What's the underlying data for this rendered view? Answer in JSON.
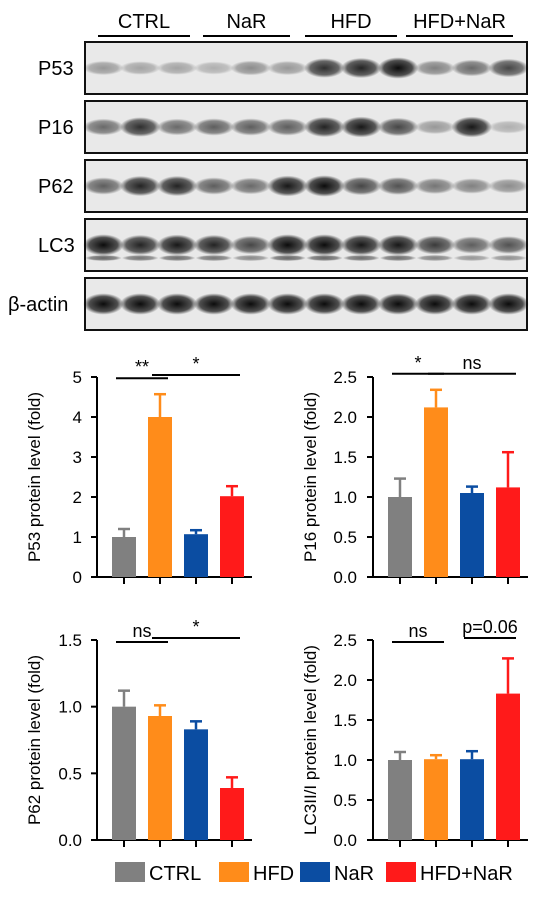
{
  "blot": {
    "groups": [
      "CTRL",
      "NaR",
      "HFD",
      "HFD+NaR"
    ],
    "rows": [
      {
        "label": "P53",
        "intensity": [
          0.35,
          0.3,
          0.3,
          0.25,
          0.4,
          0.35,
          0.8,
          0.85,
          0.95,
          0.45,
          0.55,
          0.7
        ]
      },
      {
        "label": "P16",
        "intensity": [
          0.55,
          0.8,
          0.55,
          0.6,
          0.6,
          0.6,
          0.85,
          0.9,
          0.7,
          0.35,
          0.9,
          0.25
        ]
      },
      {
        "label": "P62",
        "intensity": [
          0.6,
          0.85,
          0.85,
          0.6,
          0.55,
          0.9,
          0.95,
          0.7,
          0.65,
          0.5,
          0.45,
          0.4
        ]
      },
      {
        "label": "LC3",
        "intensity": [
          0.95,
          0.85,
          0.9,
          0.85,
          0.7,
          0.95,
          0.95,
          0.9,
          0.9,
          0.75,
          0.6,
          0.65
        ]
      },
      {
        "label": "β-actin",
        "intensity": [
          0.95,
          0.95,
          0.95,
          0.95,
          0.95,
          0.95,
          0.95,
          0.95,
          0.95,
          0.95,
          0.95,
          0.95
        ]
      }
    ]
  },
  "chart_data": [
    {
      "type": "bar",
      "categories": [
        "CTRL",
        "HFD",
        "NaR",
        "HFD+NaR"
      ],
      "values": [
        1.0,
        4.0,
        1.07,
        2.02
      ],
      "errors": [
        0.2,
        0.57,
        0.1,
        0.25
      ],
      "ylabel": "P53 protein level (fold)",
      "ylim": [
        0,
        5
      ],
      "yticks": [
        "0",
        "1",
        "2",
        "3",
        "4",
        "5"
      ],
      "significance": [
        {
          "from": 0,
          "to": 1,
          "label": "**"
        },
        {
          "from": 1,
          "to": 3,
          "label": "*"
        }
      ]
    },
    {
      "type": "bar",
      "categories": [
        "CTRL",
        "HFD",
        "NaR",
        "HFD+NaR"
      ],
      "values": [
        1.0,
        2.12,
        1.05,
        1.12
      ],
      "errors": [
        0.23,
        0.22,
        0.08,
        0.44
      ],
      "ylabel": "P16 protein level (fold)",
      "ylim": [
        0,
        2.5
      ],
      "yticks": [
        "0.0",
        "0.5",
        "1.0",
        "1.5",
        "2.0",
        "2.5"
      ],
      "significance": [
        {
          "from": 0,
          "to": 1,
          "label": "*"
        },
        {
          "from": 1,
          "to": 3,
          "label": "ns"
        }
      ]
    },
    {
      "type": "bar",
      "categories": [
        "CTRL",
        "HFD",
        "NaR",
        "HFD+NaR"
      ],
      "values": [
        1.0,
        0.93,
        0.83,
        0.39
      ],
      "errors": [
        0.12,
        0.08,
        0.06,
        0.08
      ],
      "ylabel": "P62 protein level (fold)",
      "ylim": [
        0,
        1.5
      ],
      "yticks": [
        "0.0",
        "0.5",
        "1.0",
        "1.5"
      ],
      "significance": [
        {
          "from": 0,
          "to": 1,
          "label": "ns"
        },
        {
          "from": 1,
          "to": 3,
          "label": "*"
        }
      ]
    },
    {
      "type": "bar",
      "categories": [
        "CTRL",
        "HFD",
        "NaR",
        "HFD+NaR"
      ],
      "values": [
        1.0,
        1.01,
        1.01,
        1.83
      ],
      "errors": [
        0.1,
        0.05,
        0.1,
        0.44
      ],
      "ylabel": "LC3II/I protein level (fold)",
      "ylim": [
        0,
        2.5
      ],
      "yticks": [
        "0.0",
        "0.5",
        "1.0",
        "1.5",
        "2.0",
        "2.5"
      ],
      "significance": [
        {
          "from": 0,
          "to": 1,
          "label": "ns"
        },
        {
          "from": 2,
          "to": 3,
          "label": "p=0.06"
        }
      ]
    }
  ],
  "legend": [
    {
      "label": "CTRL",
      "color": "#808080"
    },
    {
      "label": "HFD",
      "color": "#FF8C1A"
    },
    {
      "label": "NaR",
      "color": "#0B4DA2"
    },
    {
      "label": "HFD+NaR",
      "color": "#FF1A1A"
    }
  ],
  "colors": [
    "#808080",
    "#FF8C1A",
    "#0B4DA2",
    "#FF1A1A"
  ]
}
